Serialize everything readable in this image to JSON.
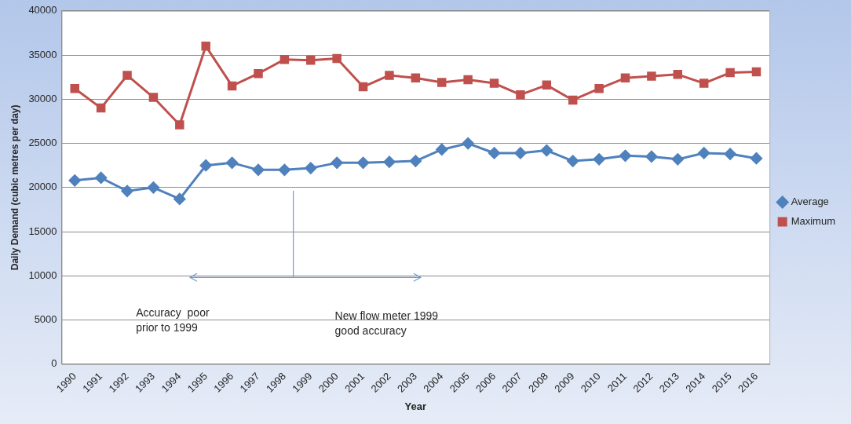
{
  "chart_data": {
    "type": "line",
    "xlabel": "Year",
    "ylabel": "Daily Demand (cubic metres per day)",
    "categories": [
      "1990",
      "1991",
      "1992",
      "1993",
      "1994",
      "1995",
      "1996",
      "1997",
      "1998",
      "1999",
      "2000",
      "2001",
      "2002",
      "2003",
      "2004",
      "2005",
      "2006",
      "2007",
      "2008",
      "2009",
      "2010",
      "2011",
      "2012",
      "2013",
      "2014",
      "2015",
      "2016"
    ],
    "series": [
      {
        "name": "Average",
        "color": "#4f81bd",
        "marker": "diamond",
        "values": [
          20800,
          21100,
          19600,
          20000,
          18700,
          22500,
          22800,
          22000,
          22000,
          22200,
          22800,
          22800,
          22900,
          23000,
          24300,
          25000,
          23900,
          23900,
          24200,
          23000,
          23200,
          23600,
          23500,
          23200,
          23900,
          23800,
          23300
        ]
      },
      {
        "name": "Maximum",
        "color": "#c0504d",
        "marker": "square",
        "values": [
          31200,
          29000,
          32700,
          30200,
          27100,
          36000,
          31500,
          32900,
          34500,
          34400,
          34600,
          31400,
          32700,
          32400,
          31900,
          32200,
          31800,
          30500,
          31600,
          29900,
          31200,
          32400,
          32600,
          32800,
          31800,
          33000,
          33100
        ]
      }
    ],
    "ylim": [
      0,
      40000
    ],
    "yticks": [
      0,
      5000,
      10000,
      15000,
      20000,
      25000,
      30000,
      35000,
      40000
    ],
    "grid": "y",
    "legend": "right",
    "annotations": [
      "Accuracy  poor\nprior to 1999",
      "New flow meter 1999\ngood accuracy"
    ]
  }
}
